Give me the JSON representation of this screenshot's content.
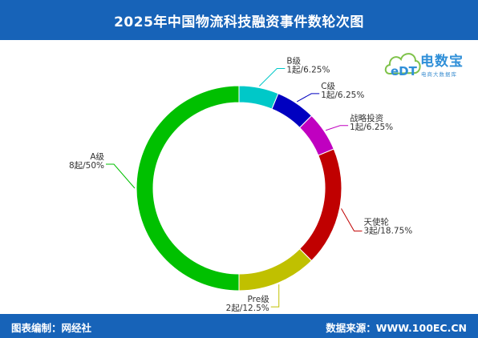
{
  "header": {
    "title": "2025年中国物流科技融资事件数轮次图"
  },
  "logo": {
    "name": "电数宝",
    "tagline": "电商大数据库",
    "icon": "cloud-edt-icon",
    "icon_text": "eDT"
  },
  "footer": {
    "left": "图表编制：网经社",
    "right": "数据来源：WWW.100EC.CN"
  },
  "colors": {
    "header_bg": "#1763b8"
  },
  "chart_data": {
    "type": "pie",
    "variant": "donut",
    "categories": [
      "A级",
      "B级",
      "C级",
      "战略投资",
      "天使轮",
      "Pre级"
    ],
    "labels": [
      "8起/50%",
      "1起/6.25%",
      "1起/6.25%",
      "1起/6.25%",
      "3起/18.75%",
      "2起/12.5%"
    ],
    "values": [
      8,
      1,
      1,
      1,
      3,
      2
    ],
    "percentages": [
      50,
      6.25,
      6.25,
      6.25,
      18.75,
      12.5
    ],
    "colors": [
      "#00c000",
      "#00c8c8",
      "#0000c0",
      "#c000c0",
      "#c00000",
      "#c0c000"
    ],
    "start_angle_deg": -90,
    "slice_order_clockwise": [
      "B级",
      "C级",
      "战略投资",
      "天使轮",
      "Pre级",
      "A级"
    ]
  }
}
